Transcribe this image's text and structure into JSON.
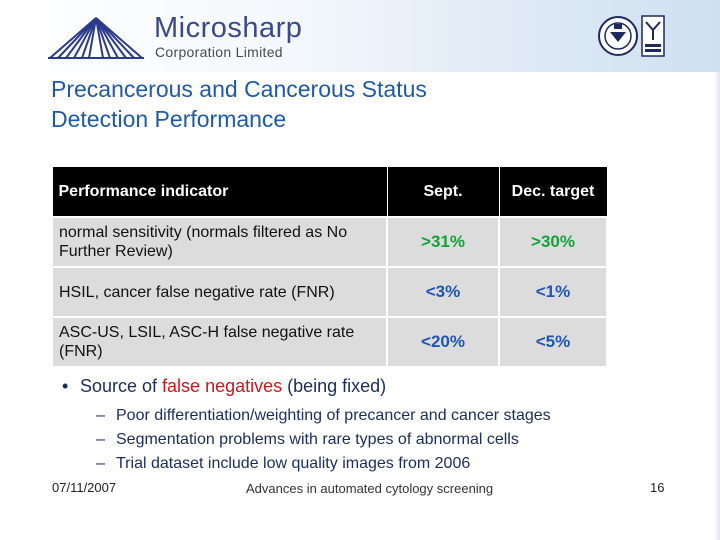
{
  "header": {
    "brand_name": "Microsharp",
    "brand_sub": "Corporation Limited"
  },
  "slide": {
    "title": "Precancerous and Cancerous Status Detection Performance"
  },
  "table": {
    "headers": [
      "Performance indicator",
      "Sept.",
      "Dec. target"
    ],
    "rows": [
      {
        "indicator": "normal sensitivity (normals filtered as No Further Review)",
        "sept": ">31%",
        "dec": ">30%",
        "color": "#13a33a"
      },
      {
        "indicator": "HSIL, cancer false negative rate (FNR)",
        "sept": "<3%",
        "dec": "<1%",
        "color": "#1f55b8"
      },
      {
        "indicator": "ASC-US, LSIL, ASC-H false negative rate (FNR)",
        "sept": "<20%",
        "dec": "<5%",
        "color": "#1f55b8"
      }
    ]
  },
  "bullets": {
    "marker": "•",
    "main_pre": "Source of ",
    "main_highlight": "false negatives",
    "main_post": " (being fixed)",
    "dash": "–",
    "subs": [
      "Poor differentiation/weighting of precancer and cancer stages",
      "Segmentation problems with rare types of abnormal cells",
      "Trial dataset include low quality images from 2006"
    ]
  },
  "footer": {
    "date": "07/11/2007",
    "title": "Advances in automated cytology screening",
    "page": "16"
  },
  "colors": {
    "title": "#1e5aa8",
    "accent_red": "#d0151b",
    "green_value": "#13a33a",
    "blue_value": "#1f55b8"
  },
  "icons": [
    "microsharp-logo",
    "certification-seal-icon",
    "ukas-mark-icon"
  ]
}
